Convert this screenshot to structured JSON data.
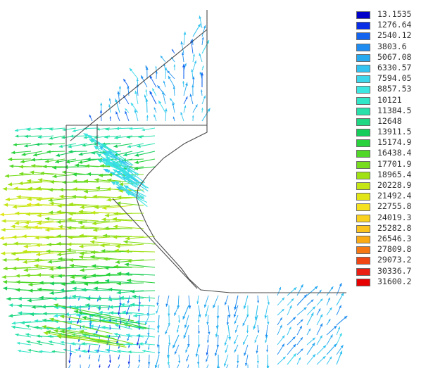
{
  "legend": {
    "entries": [
      {
        "value": "13.1535",
        "color": "#0000c8"
      },
      {
        "value": "1276.64",
        "color": "#0a2ee6"
      },
      {
        "value": "2540.12",
        "color": "#1464f0"
      },
      {
        "value": "3803.6",
        "color": "#1e8cf0"
      },
      {
        "value": "5067.08",
        "color": "#28aaf0"
      },
      {
        "value": "6330.57",
        "color": "#32c3f0"
      },
      {
        "value": "7594.05",
        "color": "#3cd7eb"
      },
      {
        "value": "8857.53",
        "color": "#3ce6e1"
      },
      {
        "value": "10121",
        "color": "#32e6c8"
      },
      {
        "value": "11384.5",
        "color": "#28e1aa"
      },
      {
        "value": "12648",
        "color": "#1ed782"
      },
      {
        "value": "13911.5",
        "color": "#14cd5a"
      },
      {
        "value": "15174.9",
        "color": "#28d23c"
      },
      {
        "value": "16438.4",
        "color": "#50d728"
      },
      {
        "value": "17701.9",
        "color": "#78dc1e"
      },
      {
        "value": "18965.4",
        "color": "#a0e114"
      },
      {
        "value": "20228.9",
        "color": "#c3e614"
      },
      {
        "value": "21492.4",
        "color": "#e1e614"
      },
      {
        "value": "22755.8",
        "color": "#f5e11e"
      },
      {
        "value": "24019.3",
        "color": "#fad21e"
      },
      {
        "value": "25282.8",
        "color": "#fac31e"
      },
      {
        "value": "26546.3",
        "color": "#faaa14"
      },
      {
        "value": "27809.8",
        "color": "#f57814"
      },
      {
        "value": "29073.2",
        "color": "#f04614"
      },
      {
        "value": "30336.7",
        "color": "#eb1e14"
      },
      {
        "value": "31600.2",
        "color": "#e60000"
      }
    ]
  },
  "field": {
    "min_value": 13.1535,
    "max_value": 31600.2
  }
}
